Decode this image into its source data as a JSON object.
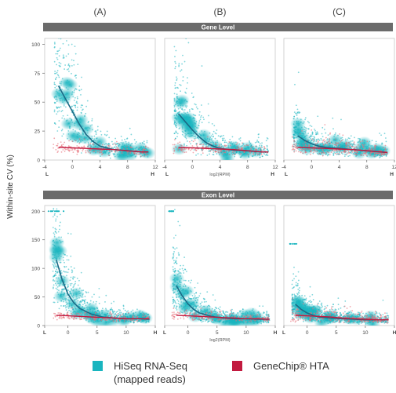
{
  "chart_data": {
    "type": "scatter",
    "column_labels": [
      "(A)",
      "(B)",
      "(C)"
    ],
    "y_axis_label": "Within-site CV (%)",
    "rows": [
      {
        "strip_label": "Gene Level",
        "ylim": [
          0,
          105
        ],
        "yticks": [
          0,
          25,
          50,
          75,
          100
        ],
        "xlim": [
          -4,
          12
        ],
        "xticks": [
          -4,
          0,
          4,
          8,
          12
        ],
        "x_tick_labels": [
          "-4",
          "0",
          "4",
          "8",
          "12"
        ],
        "x_end_labels": [
          "L",
          "H"
        ],
        "x_axis_title": "log2(RPM)",
        "panels": [
          {
            "column": "(A)",
            "series": [
              {
                "name": "HiSeq RNA-Seq",
                "trend_x": [
                  -2,
                  -1,
                  0,
                  1,
                  2,
                  3,
                  4,
                  6,
                  8,
                  10,
                  11
                ],
                "trend_y": [
                  64,
                  53,
                  42,
                  31,
                  22,
                  16,
                  12,
                  9,
                  8,
                  7,
                  7
                ]
              },
              {
                "name": "GeneChip HTA",
                "trend_x": [
                  -2,
                  0,
                  2,
                  4,
                  6,
                  8,
                  10,
                  11
                ],
                "trend_y": [
                  11,
                  10.5,
                  10,
                  9.5,
                  9,
                  8,
                  7,
                  7
                ]
              }
            ]
          },
          {
            "column": "(B)",
            "series": [
              {
                "name": "HiSeq RNA-Seq",
                "trend_x": [
                  -2,
                  -1,
                  0,
                  1,
                  2,
                  3,
                  4,
                  6,
                  8,
                  10,
                  11
                ],
                "trend_y": [
                  40,
                  33,
                  26,
                  20,
                  15,
                  12,
                  10,
                  8.5,
                  8,
                  7,
                  7
                ]
              },
              {
                "name": "GeneChip HTA",
                "trend_x": [
                  -2,
                  0,
                  2,
                  4,
                  6,
                  8,
                  10,
                  11
                ],
                "trend_y": [
                  11,
                  10.5,
                  10,
                  9.5,
                  9,
                  8,
                  7,
                  7
                ]
              }
            ]
          },
          {
            "column": "(C)",
            "series": [
              {
                "name": "HiSeq RNA-Seq",
                "trend_x": [
                  -2,
                  -1,
                  0,
                  1,
                  2,
                  4,
                  6,
                  8,
                  10,
                  11
                ],
                "trend_y": [
                  21,
                  17,
                  14,
                  12,
                  11,
                  10,
                  9,
                  8,
                  7,
                  6.5
                ]
              },
              {
                "name": "GeneChip HTA",
                "trend_x": [
                  -2,
                  0,
                  2,
                  4,
                  6,
                  8,
                  10,
                  11
                ],
                "trend_y": [
                  11,
                  10.5,
                  10,
                  9.5,
                  9,
                  8,
                  7,
                  6.5
                ]
              }
            ]
          }
        ]
      },
      {
        "strip_label": "Exon Level",
        "ylim": [
          0,
          210
        ],
        "yticks": [
          0,
          50,
          100,
          150,
          200
        ],
        "xlim": [
          -4,
          15
        ],
        "xticks": [
          -4,
          0,
          5,
          10,
          15
        ],
        "x_tick_labels": [
          "L",
          "0",
          "5",
          "10",
          "H"
        ],
        "x_end_labels": [],
        "x_axis_title": "log2(RPM)",
        "panels": [
          {
            "column": "(A)",
            "series": [
              {
                "name": "HiSeq RNA-Seq",
                "trend_x": [
                  -2,
                  -1,
                  0,
                  1,
                  2,
                  4,
                  6,
                  8,
                  10,
                  12,
                  14
                ],
                "trend_y": [
                  115,
                  80,
                  55,
                  40,
                  30,
                  20,
                  15,
                  13,
                  12,
                  12,
                  11
                ]
              },
              {
                "name": "GeneChip HTA",
                "trend_x": [
                  -2,
                  0,
                  2,
                  4,
                  6,
                  8,
                  10,
                  12,
                  14
                ],
                "trend_y": [
                  18,
                  17,
                  16,
                  15,
                  14,
                  13,
                  12,
                  12,
                  12
                ]
              }
            ]
          },
          {
            "column": "(B)",
            "series": [
              {
                "name": "HiSeq RNA-Seq",
                "trend_x": [
                  -2,
                  -1,
                  0,
                  1,
                  2,
                  4,
                  6,
                  8,
                  10,
                  12,
                  14
                ],
                "trend_y": [
                  70,
                  52,
                  38,
                  28,
                  22,
                  16,
                  13,
                  12,
                  12,
                  11,
                  11
                ]
              },
              {
                "name": "GeneChip HTA",
                "trend_x": [
                  -2,
                  0,
                  2,
                  4,
                  6,
                  8,
                  10,
                  12,
                  14
                ],
                "trend_y": [
                  18,
                  17,
                  16,
                  15,
                  14,
                  13,
                  12,
                  12,
                  11
                ]
              }
            ]
          },
          {
            "column": "(C)",
            "series": [
              {
                "name": "HiSeq RNA-Seq",
                "trend_x": [
                  -2,
                  -1,
                  0,
                  1,
                  2,
                  4,
                  6,
                  8,
                  10,
                  12,
                  14
                ],
                "trend_y": [
                  37,
                  28,
                  22,
                  18,
                  15,
                  13,
                  12,
                  11,
                  10,
                  10,
                  10
                ]
              },
              {
                "name": "GeneChip HTA",
                "trend_x": [
                  -2,
                  0,
                  2,
                  4,
                  6,
                  8,
                  10,
                  12,
                  14
                ],
                "trend_y": [
                  18,
                  17,
                  16,
                  15,
                  13,
                  12,
                  11,
                  10,
                  10
                ]
              }
            ]
          }
        ]
      }
    ]
  },
  "legend": {
    "hiseq_label": "HiSeq RNA-Seq",
    "hiseq_sub": "(mapped reads)",
    "genechip_label": "GeneChip® HTA"
  },
  "colors": {
    "hiseq": "#19b5bf",
    "hiseq_trend": "#1b6a86",
    "genechip": "#c21a3f",
    "genechip_points": "#e8707a",
    "strip": "#6b6b6b",
    "panel_border": "#c8c8c8"
  }
}
